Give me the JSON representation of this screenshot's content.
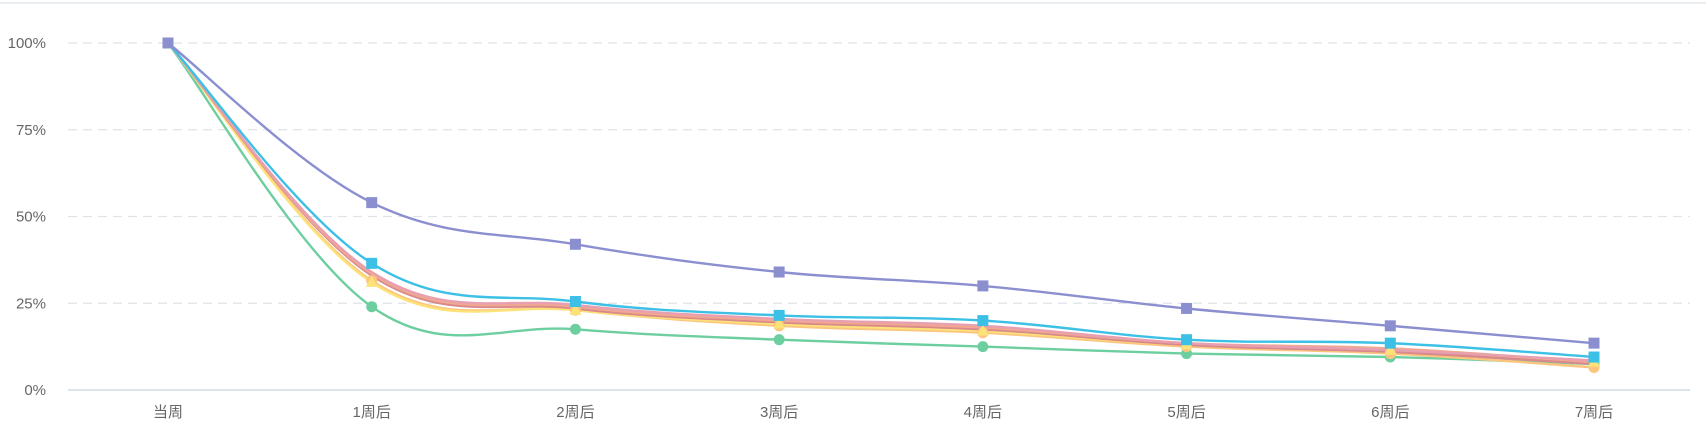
{
  "chart_data": {
    "type": "line",
    "title": "",
    "xlabel": "",
    "ylabel": "",
    "categories": [
      "当周",
      "1周后",
      "2周后",
      "3周后",
      "4周后",
      "5周后",
      "6周后",
      "7周后"
    ],
    "y_ticks": [
      "0%",
      "25%",
      "50%",
      "75%",
      "100%"
    ],
    "ylim": [
      0,
      100
    ],
    "grid": "horizontal-dashed",
    "series": [
      {
        "name": "series-purple",
        "color": "#8b8fd0",
        "marker": "square",
        "values": [
          100,
          54,
          42,
          34,
          30,
          23.5,
          18.5,
          13.5
        ]
      },
      {
        "name": "series-cyan",
        "color": "#3dc0e6",
        "marker": "square",
        "values": [
          100,
          36.5,
          25.5,
          21.5,
          20,
          14.5,
          13.5,
          9.5
        ]
      },
      {
        "name": "series-pink",
        "color": "#e8a0b0",
        "marker": "none",
        "values": [
          100,
          34,
          24.5,
          20.5,
          18.5,
          13.5,
          11.5,
          8.5
        ]
      },
      {
        "name": "series-salmon",
        "color": "#f0a890",
        "marker": "none",
        "values": [
          100,
          33.5,
          24,
          20,
          18,
          13.5,
          12,
          8
        ]
      },
      {
        "name": "series-red",
        "color": "#d9888c",
        "marker": "none",
        "values": [
          100,
          33,
          23.5,
          19.5,
          17.5,
          13,
          11,
          7.5
        ]
      },
      {
        "name": "series-yellow",
        "color": "#fde27a",
        "marker": "triangle",
        "values": [
          100,
          31,
          23,
          19,
          17,
          13,
          11.5,
          8
        ]
      },
      {
        "name": "series-orange",
        "color": "#fcc57e",
        "marker": "circle",
        "values": [
          100,
          31.5,
          23,
          18.5,
          16.5,
          12.5,
          10.5,
          6.5
        ]
      },
      {
        "name": "series-green",
        "color": "#6dcf9f",
        "marker": "circle",
        "values": [
          100,
          24,
          17.5,
          14.5,
          12.5,
          10.5,
          9.5,
          7.5
        ]
      }
    ]
  }
}
